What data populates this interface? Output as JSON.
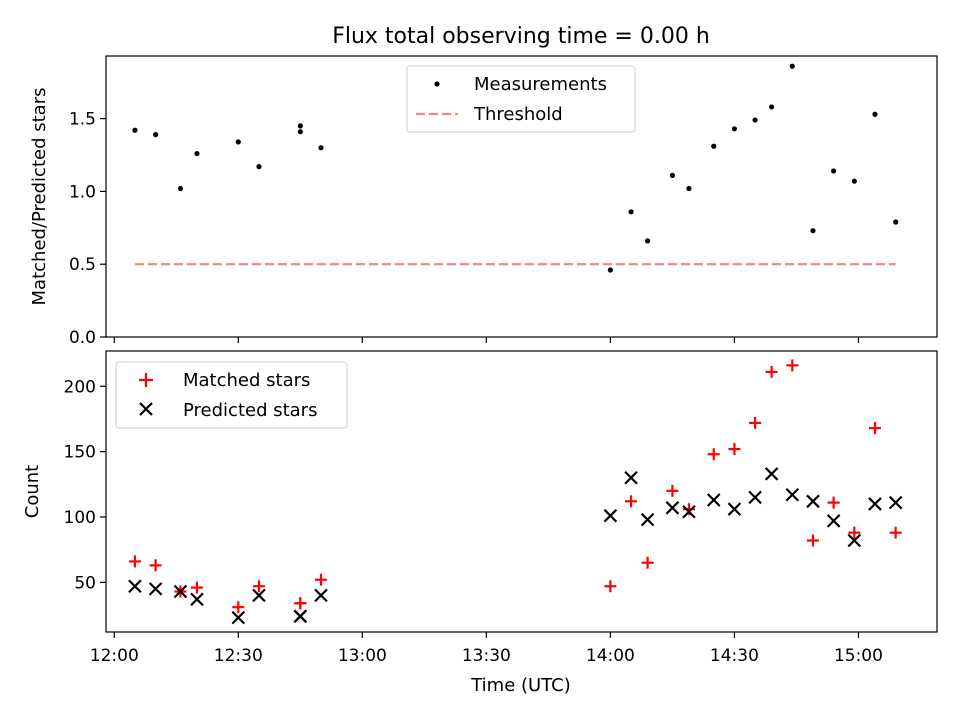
{
  "title": "Flux total observing time = 0.00 h",
  "xlabel": "Time (UTC)",
  "xticks": [
    "12:00",
    "12:30",
    "13:00",
    "13:30",
    "14:00",
    "14:30",
    "15:00"
  ],
  "colors": {
    "measurements": "#000000",
    "threshold": "#ff7f7f",
    "matched": "#ff0000",
    "predicted": "#000000"
  },
  "chart_data": [
    {
      "type": "scatter",
      "ylabel": "Matched/Predicted stars",
      "xlim": [
        "11:58",
        "15:19"
      ],
      "ylim": [
        0,
        1.93
      ],
      "yticks": [
        "0.0",
        "0.5",
        "1.0",
        "1.5"
      ],
      "legend": {
        "placement": "upper-center",
        "entries": [
          "Measurements",
          "Threshold"
        ]
      },
      "series": [
        {
          "name": "Measurements",
          "x": [
            "12:05",
            "12:10",
            "12:16",
            "12:20",
            "12:30",
            "12:35",
            "12:45",
            "12:45",
            "12:50",
            "14:00",
            "14:05",
            "14:09",
            "14:15",
            "14:19",
            "14:25",
            "14:30",
            "14:35",
            "14:39",
            "14:44",
            "14:49",
            "14:54",
            "14:59",
            "15:04",
            "15:09"
          ],
          "y": [
            1.42,
            1.39,
            1.02,
            1.26,
            1.34,
            1.17,
            1.41,
            1.45,
            1.3,
            0.46,
            0.86,
            0.66,
            1.11,
            1.02,
            1.31,
            1.43,
            1.49,
            1.58,
            1.86,
            0.73,
            1.14,
            1.07,
            1.53,
            0.79
          ]
        },
        {
          "name": "Threshold",
          "x": [
            "12:05",
            "15:09"
          ],
          "y": [
            0.5,
            0.5
          ]
        }
      ]
    },
    {
      "type": "scatter",
      "ylabel": "Count",
      "xlim": [
        "11:58",
        "15:19"
      ],
      "ylim": [
        12,
        227
      ],
      "yticks": [
        "50",
        "100",
        "150",
        "200"
      ],
      "legend": {
        "placement": "upper-left",
        "entries": [
          "Matched stars",
          "Predicted stars"
        ]
      },
      "series": [
        {
          "name": "Matched stars",
          "x": [
            "12:05",
            "12:10",
            "12:16",
            "12:20",
            "12:30",
            "12:35",
            "12:45",
            "12:45",
            "12:50",
            "14:00",
            "14:05",
            "14:09",
            "14:15",
            "14:19",
            "14:25",
            "14:30",
            "14:35",
            "14:39",
            "14:44",
            "14:49",
            "14:54",
            "14:59",
            "15:04",
            "15:09"
          ],
          "y": [
            66,
            63,
            43,
            46,
            31,
            47,
            34,
            34,
            52,
            47,
            112,
            65,
            120,
            106,
            148,
            152,
            172,
            211,
            216,
            82,
            111,
            88,
            168,
            88
          ]
        },
        {
          "name": "Predicted stars",
          "x": [
            "12:05",
            "12:10",
            "12:16",
            "12:20",
            "12:30",
            "12:35",
            "12:45",
            "12:45",
            "12:50",
            "14:00",
            "14:05",
            "14:09",
            "14:15",
            "14:19",
            "14:25",
            "14:30",
            "14:35",
            "14:39",
            "14:44",
            "14:49",
            "14:54",
            "14:59",
            "15:04",
            "15:09"
          ],
          "y": [
            47,
            45,
            43,
            37,
            23,
            40,
            24,
            24,
            40,
            101,
            130,
            98,
            107,
            104,
            113,
            106,
            115,
            133,
            117,
            112,
            97,
            82,
            110,
            111
          ]
        }
      ]
    }
  ]
}
